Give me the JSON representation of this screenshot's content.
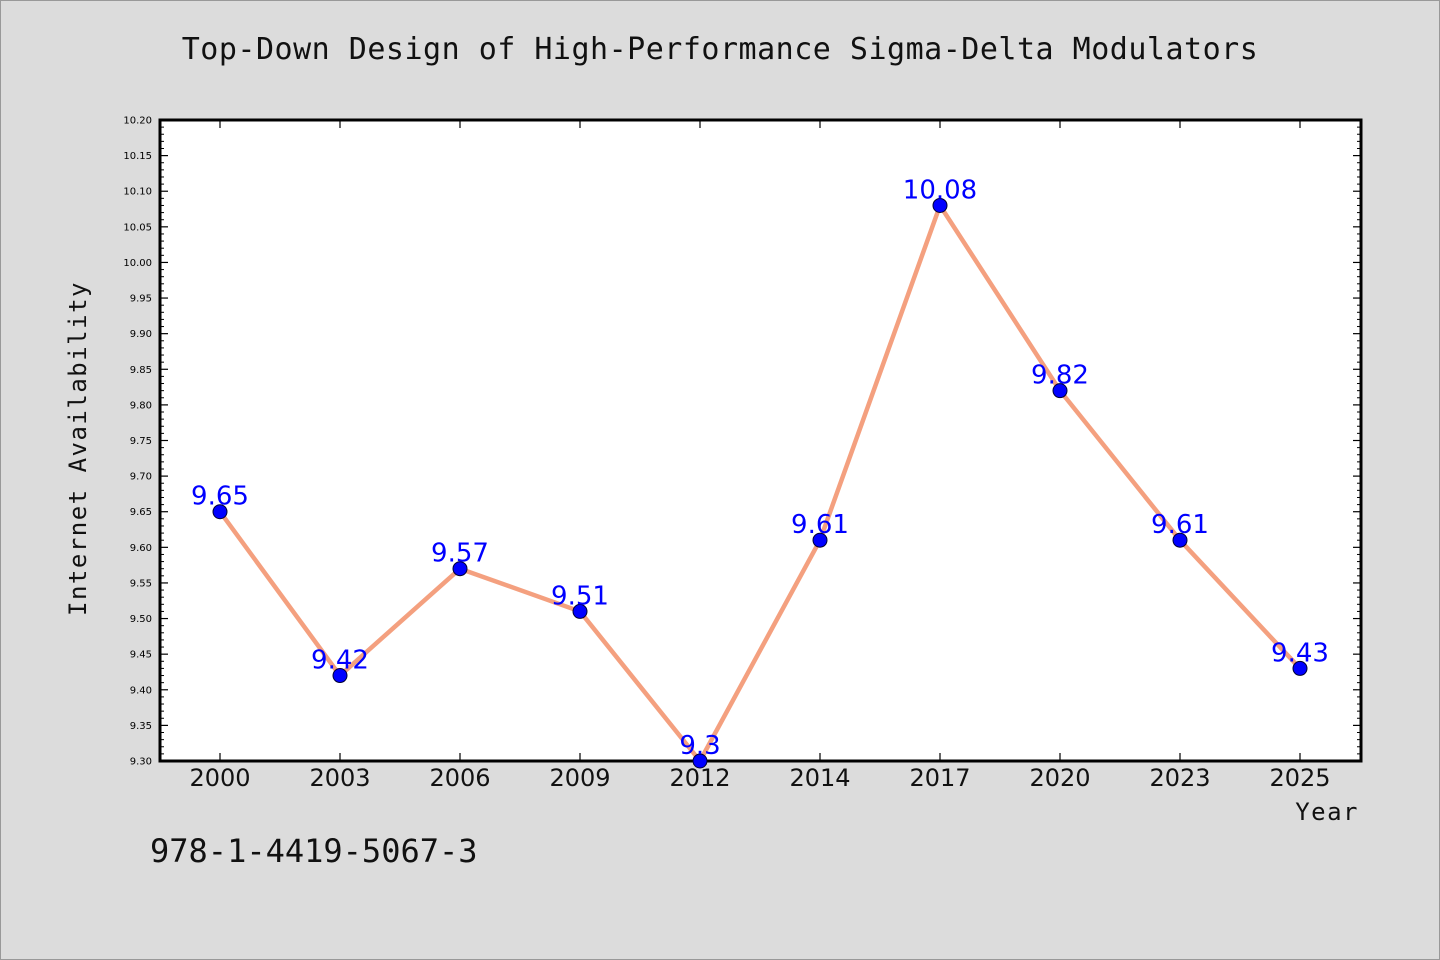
{
  "page": {
    "title": "Top-Down Design of High-Performance Sigma-Delta Modulators",
    "isbn": "978-1-4419-5067-3"
  },
  "colors": {
    "background": "#dcdcdc",
    "plot_background": "#ffffff",
    "line": "#f4a07f",
    "marker": "#0000ff",
    "data_label": "#0000ff"
  },
  "chart_data": {
    "type": "line",
    "title": "Top-Down Design of High-Performance Sigma-Delta Modulators",
    "xlabel": "Year",
    "ylabel": "Internet Availability",
    "categories": [
      "2000",
      "2003",
      "2006",
      "2009",
      "2012",
      "2014",
      "2017",
      "2020",
      "2023",
      "2025"
    ],
    "series": [
      {
        "values": [
          9.65,
          9.42,
          9.57,
          9.51,
          9.3,
          9.61,
          10.08,
          9.82,
          9.61,
          9.43
        ],
        "labels": [
          "9.65",
          "9.42",
          "9.57",
          "9.51",
          "9.3",
          "9.61",
          "10.08",
          "9.82",
          "9.61",
          "9.43"
        ]
      }
    ],
    "ylim": [
      9.3,
      10.2
    ],
    "y_ticks": [
      "9.30",
      "9.35",
      "9.40",
      "9.45",
      "9.50",
      "9.55",
      "9.60",
      "9.65",
      "9.70",
      "9.75",
      "9.80",
      "9.85",
      "9.90",
      "9.95",
      "10.00",
      "10.05",
      "10.10",
      "10.15",
      "10.20"
    ],
    "grid": false,
    "legend": "none"
  }
}
